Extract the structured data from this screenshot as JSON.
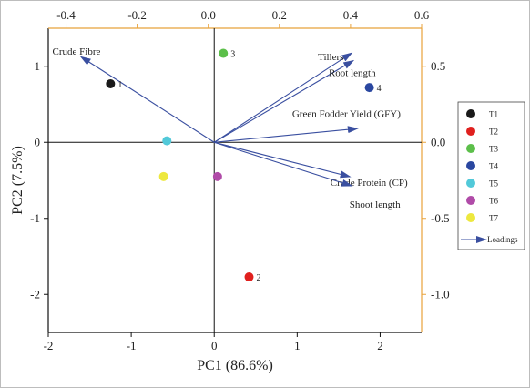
{
  "chart_data": {
    "type": "biplot",
    "xlabel": "PC1 (86.6%)",
    "ylabel": "PC2 (7.5%)",
    "xlim": [
      -2,
      2.5
    ],
    "ylim": [
      -2.5,
      1.5
    ],
    "xticks": [
      -2,
      -1,
      0,
      1,
      2
    ],
    "yticks": [
      -2,
      -1,
      0,
      1
    ],
    "top_axis": {
      "range": [
        -0.45,
        0.6
      ],
      "ticks": [
        -0.4,
        -0.2,
        0.0,
        0.2,
        0.4,
        0.6
      ],
      "tick_labels": [
        "-0.4",
        "-0.2",
        "0.0",
        "0.2",
        "0.4",
        "0.6"
      ],
      "color": "#e8a23a"
    },
    "right_axis": {
      "range": [
        -1.25,
        0.75
      ],
      "ticks": [
        0.5,
        0.0,
        -0.5,
        -1.0
      ],
      "tick_labels": [
        "0.5",
        "0.0",
        "-0.5",
        "-1.0"
      ],
      "color": "#e8a23a"
    },
    "grid": false,
    "scores": [
      {
        "name": "T1",
        "label": "1",
        "x": -1.25,
        "y": 0.77,
        "color": "#1a1a1a"
      },
      {
        "name": "T2",
        "label": "2",
        "x": 0.42,
        "y": -1.77,
        "color": "#e0201e"
      },
      {
        "name": "T3",
        "label": "3",
        "x": 0.11,
        "y": 1.17,
        "color": "#5cbf4a"
      },
      {
        "name": "T4",
        "label": "4",
        "x": 1.87,
        "y": 0.72,
        "color": "#2a47a0"
      },
      {
        "name": "T5",
        "label": "",
        "x": -0.57,
        "y": 0.02,
        "color": "#52c9d9"
      },
      {
        "name": "T6",
        "label": "",
        "x": 0.04,
        "y": -0.45,
        "color": "#b04ba8"
      },
      {
        "name": "T7",
        "label": "",
        "x": -0.61,
        "y": -0.45,
        "color": "#ede83e"
      }
    ],
    "loadings": [
      {
        "name": "Crude Fibre",
        "x": -1.6,
        "y": 1.12
      },
      {
        "name": "Tillers",
        "x": 1.65,
        "y": 1.17
      },
      {
        "name": "Root length",
        "x": 1.67,
        "y": 1.07
      },
      {
        "name": "Green Fodder Yield (GFY)",
        "x": 1.72,
        "y": 0.18
      },
      {
        "name": "Crude Protein (CP)",
        "x": 1.63,
        "y": -0.45
      },
      {
        "name": "Shoot length",
        "x": 1.65,
        "y": -0.57
      }
    ],
    "loading_color": "#3a4fa0",
    "legend": {
      "placement": "right",
      "entries": [
        "T1",
        "T2",
        "T3",
        "T4",
        "T5",
        "T6",
        "T7"
      ],
      "loadings_label": "Loadings"
    }
  }
}
